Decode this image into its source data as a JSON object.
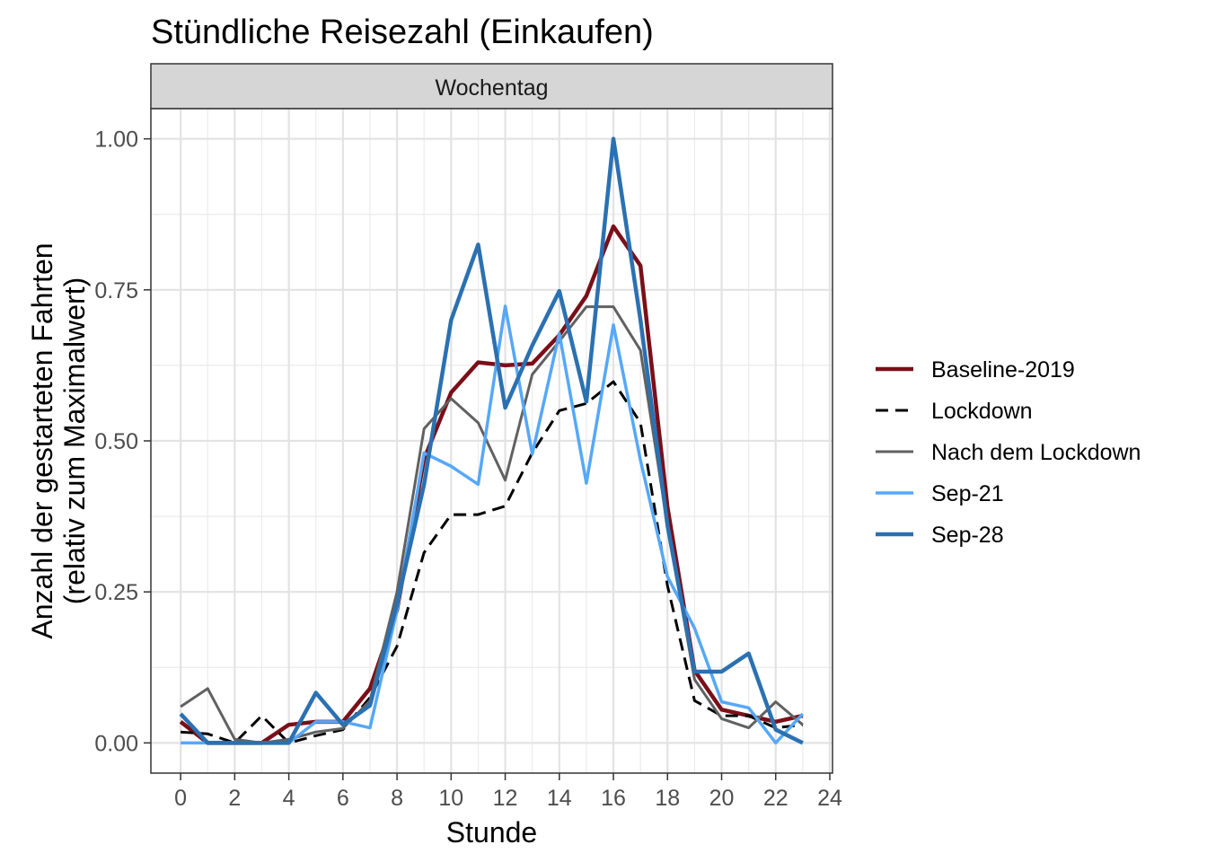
{
  "chart_data": {
    "type": "line",
    "title": "Stündliche Reisezahl (Einkaufen)",
    "facet_label": "Wochentag",
    "xlabel": "Stunde",
    "ylabel_line1": "Anzahl der gestarteten Fahrten",
    "ylabel_line2": "(relativ zum Maximalwert)",
    "xlim": [
      -1.1,
      24.1
    ],
    "ylim": [
      -0.05,
      1.05
    ],
    "x_ticks": [
      0,
      2,
      4,
      6,
      8,
      10,
      12,
      14,
      16,
      18,
      20,
      22,
      24
    ],
    "y_ticks": [
      0.0,
      0.25,
      0.5,
      0.75,
      1.0
    ],
    "y_tick_labels": [
      "0.00",
      "0.25",
      "0.50",
      "0.75",
      "1.00"
    ],
    "grid": true,
    "legend_position": "right",
    "x": [
      0,
      1,
      2,
      3,
      4,
      5,
      6,
      7,
      8,
      9,
      10,
      11,
      12,
      13,
      14,
      15,
      16,
      17,
      18,
      19,
      20,
      21,
      22,
      23
    ],
    "series": [
      {
        "name": "Baseline-2019",
        "color": "#7b0f19",
        "dash": "solid",
        "width": 4.5,
        "values": [
          0.035,
          0.0,
          0.0,
          0.0,
          0.03,
          0.035,
          0.035,
          0.09,
          0.22,
          0.47,
          0.58,
          0.63,
          0.625,
          0.628,
          0.675,
          0.74,
          0.855,
          0.79,
          0.39,
          0.12,
          0.055,
          0.045,
          0.035,
          0.045
        ]
      },
      {
        "name": "Lockdown",
        "color": "#000000",
        "dash": "dashed",
        "width": 3,
        "values": [
          0.018,
          0.015,
          0.0,
          0.045,
          0.0,
          0.012,
          0.022,
          0.075,
          0.16,
          0.315,
          0.378,
          0.378,
          0.392,
          0.48,
          0.55,
          0.562,
          0.598,
          0.53,
          0.26,
          0.07,
          0.045,
          0.045,
          0.025,
          0.03
        ]
      },
      {
        "name": "Nach dem Lockdown",
        "color": "#616161",
        "dash": "solid",
        "width": 3,
        "values": [
          0.06,
          0.09,
          0.006,
          0.0,
          0.006,
          0.018,
          0.024,
          0.07,
          0.25,
          0.52,
          0.57,
          0.53,
          0.435,
          0.61,
          0.665,
          0.722,
          0.722,
          0.65,
          0.36,
          0.105,
          0.04,
          0.025,
          0.068,
          0.03
        ]
      },
      {
        "name": "Sep-21",
        "color": "#56a8f8",
        "dash": "solid",
        "width": 3.5,
        "values": [
          0.0,
          0.0,
          0.0,
          0.0,
          0.0,
          0.035,
          0.035,
          0.025,
          0.22,
          0.48,
          0.458,
          0.428,
          0.723,
          0.478,
          0.678,
          0.43,
          0.692,
          0.468,
          0.275,
          0.19,
          0.068,
          0.058,
          0.0,
          0.048
        ]
      },
      {
        "name": "Sep-28",
        "color": "#2b71b1",
        "dash": "solid",
        "width": 4.5,
        "values": [
          0.048,
          0.0,
          0.0,
          0.0,
          0.0,
          0.083,
          0.03,
          0.062,
          0.23,
          0.428,
          0.7,
          0.825,
          0.555,
          0.658,
          0.748,
          0.565,
          1.0,
          0.7,
          0.36,
          0.118,
          0.118,
          0.148,
          0.022,
          0.0
        ]
      }
    ]
  }
}
